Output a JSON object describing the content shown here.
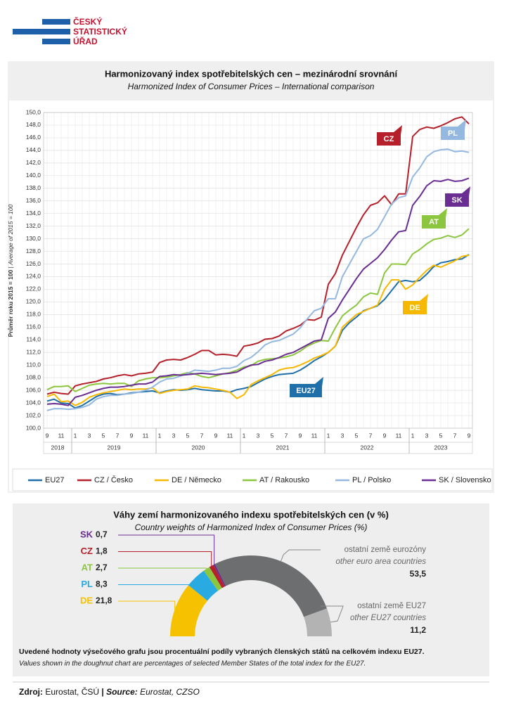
{
  "header": {
    "logo": [
      "ČESKÝ",
      "STATISTICKÝ",
      "ÚŘAD"
    ]
  },
  "chart_data": [
    {
      "type": "line",
      "title": "Harmonizovaný index spotřebitelských cen – mezinárodní srovnání",
      "subtitle": "Harmonized Index of Consumer Prices – International comparison",
      "ylabel": "Průměr roku 2015 = 100",
      "ylabel_separator": "|",
      "ylabel_en": "Average of 2015 = 100",
      "categories": [
        "9",
        null,
        "11",
        null,
        "1",
        null,
        "3",
        null,
        "5",
        null,
        "7",
        null,
        "9",
        null,
        "11",
        null,
        "1",
        null,
        "3",
        null,
        "5",
        null,
        "7",
        null,
        "9",
        null,
        "11",
        null,
        "1",
        null,
        "3",
        null,
        "5",
        null,
        "7",
        null,
        "9",
        null,
        "11",
        null,
        "1",
        null,
        "3",
        null,
        "5",
        null,
        "7",
        null,
        "9",
        null,
        "11",
        null,
        "1",
        null,
        "3",
        null,
        "5",
        null,
        "7",
        null,
        "9"
      ],
      "year_groups": [
        {
          "label": "2018",
          "months": 4
        },
        {
          "label": "2019",
          "months": 12
        },
        {
          "label": "2020",
          "months": 12
        },
        {
          "label": "2021",
          "months": 12
        },
        {
          "label": "2022",
          "months": 12
        },
        {
          "label": "2023",
          "months": 9
        }
      ],
      "series": [
        {
          "name": "EU27",
          "tag": "EU27",
          "color": "#1f6fa8",
          "values": [
            104.3,
            104.6,
            104.0,
            103.9,
            103.2,
            103.6,
            104.3,
            105.0,
            105.4,
            105.5,
            105.3,
            105.4,
            105.6,
            105.7,
            105.8,
            105.9,
            105.6,
            105.9,
            106.1,
            106.0,
            106.1,
            106.3,
            106.1,
            106.0,
            105.9,
            105.9,
            105.7,
            106.1,
            106.3,
            106.6,
            107.2,
            107.8,
            108.2,
            108.5,
            108.6,
            108.7,
            109.2,
            109.9,
            110.7,
            111.3,
            112.0,
            113.0,
            115.5,
            116.7,
            117.6,
            118.6,
            119.0,
            119.4,
            120.4,
            121.8,
            123.2,
            123.4,
            123.2,
            123.4,
            124.4,
            125.6,
            126.2,
            126.4,
            126.7,
            126.8,
            127.5
          ]
        },
        {
          "name": "CZ / Česko",
          "tag": "CZ",
          "color": "#b5202a",
          "values": [
            105.4,
            105.7,
            105.5,
            105.4,
            106.7,
            107.0,
            107.2,
            107.4,
            107.8,
            108.0,
            108.3,
            108.5,
            108.3,
            108.6,
            108.7,
            108.9,
            110.4,
            110.8,
            110.9,
            110.8,
            111.2,
            111.7,
            112.3,
            112.3,
            111.6,
            111.7,
            111.6,
            111.4,
            113.0,
            113.2,
            113.5,
            114.1,
            114.2,
            114.6,
            115.4,
            115.8,
            116.3,
            117.2,
            117.1,
            117.6,
            122.8,
            124.5,
            127.4,
            129.6,
            131.8,
            133.8,
            135.3,
            135.7,
            136.8,
            135.4,
            137.1,
            137.1,
            146.2,
            147.3,
            147.7,
            147.5,
            147.9,
            148.4,
            149.0,
            149.3,
            148.2
          ]
        },
        {
          "name": "DE / Německo",
          "tag": "DE",
          "color": "#f6b800",
          "values": [
            105.0,
            105.4,
            104.2,
            104.3,
            103.6,
            104.1,
            104.9,
            105.3,
            105.6,
            105.8,
            106.0,
            106.2,
            106.1,
            106.2,
            106.2,
            106.4,
            105.5,
            105.8,
            106.0,
            106.1,
            106.2,
            106.7,
            106.5,
            106.4,
            106.2,
            106.0,
            105.7,
            104.7,
            105.3,
            106.9,
            107.5,
            108.0,
            108.5,
            109.2,
            109.5,
            109.6,
            110.0,
            110.5,
            111.1,
            111.5,
            112.0,
            113.0,
            116.0,
            117.0,
            118.0,
            118.5,
            119.0,
            119.5,
            122.0,
            123.5,
            123.5,
            122.0,
            122.7,
            123.9,
            125.0,
            125.8,
            125.5,
            126.0,
            126.5,
            127.2,
            127.4
          ]
        },
        {
          "name": "AT / Rakousko",
          "tag": "AT",
          "color": "#8cc63e",
          "values": [
            106.1,
            106.6,
            106.6,
            106.7,
            105.8,
            106.3,
            106.8,
            107.0,
            107.1,
            107.0,
            107.1,
            107.1,
            106.6,
            107.5,
            107.8,
            108.0,
            108.0,
            108.1,
            108.3,
            108.5,
            108.8,
            108.6,
            108.2,
            108.0,
            108.3,
            108.6,
            108.8,
            109.2,
            109.7,
            109.9,
            110.6,
            110.9,
            111.0,
            111.1,
            111.3,
            111.6,
            112.2,
            113.0,
            113.5,
            113.9,
            113.8,
            115.9,
            117.8,
            118.7,
            119.5,
            120.8,
            121.4,
            121.2,
            124.6,
            126.0,
            126.0,
            125.9,
            127.6,
            128.3,
            129.2,
            129.9,
            130.1,
            130.5,
            130.2,
            130.6,
            131.6
          ]
        },
        {
          "name": "PL / Polsko",
          "tag": "PL",
          "color": "#94b8e0",
          "values": [
            102.8,
            103.1,
            103.1,
            103.0,
            103.1,
            103.3,
            103.7,
            104.6,
            105.0,
            105.2,
            105.2,
            105.4,
            105.5,
            105.7,
            106.0,
            106.5,
            107.3,
            107.8,
            107.9,
            108.3,
            108.7,
            109.2,
            109.1,
            109.0,
            109.2,
            109.5,
            109.5,
            109.8,
            110.7,
            111.2,
            112.1,
            113.2,
            113.7,
            113.9,
            114.4,
            114.9,
            115.9,
            117.3,
            118.6,
            119.0,
            120.5,
            120.5,
            124.0,
            126.0,
            128.0,
            130.0,
            130.5,
            131.5,
            133.5,
            135.5,
            136.5,
            136.8,
            139.8,
            141.2,
            143.0,
            143.8,
            144.1,
            144.2,
            143.8,
            143.9,
            143.7
          ]
        },
        {
          "name": "SK / Slovensko",
          "tag": "SK",
          "color": "#6a2d91",
          "values": [
            103.8,
            103.9,
            103.8,
            103.6,
            104.9,
            105.2,
            105.6,
            106.0,
            106.3,
            106.5,
            106.5,
            106.6,
            106.8,
            107.0,
            107.0,
            107.3,
            108.2,
            108.3,
            108.5,
            108.4,
            108.5,
            108.6,
            108.7,
            108.6,
            108.5,
            108.6,
            108.7,
            108.9,
            109.5,
            110.0,
            110.1,
            110.6,
            110.8,
            111.2,
            111.7,
            112.0,
            112.6,
            113.2,
            113.8,
            114.0,
            117.4,
            118.4,
            120.3,
            122.0,
            123.7,
            125.2,
            126.1,
            127.0,
            128.3,
            129.8,
            131.1,
            131.3,
            135.3,
            136.7,
            138.4,
            139.2,
            139.1,
            139.4,
            139.1,
            139.2,
            139.6
          ]
        }
      ],
      "ylim": [
        100,
        150
      ],
      "yticks": [
        {
          "value": 100,
          "label": "100,0"
        },
        {
          "value": 102,
          "label": "102,0"
        },
        {
          "value": 104,
          "label": "104,0"
        },
        {
          "value": 106,
          "label": "106,0"
        },
        {
          "value": 108,
          "label": "108,0"
        },
        {
          "value": 110,
          "label": "110,0"
        },
        {
          "value": 112,
          "label": "112,0"
        },
        {
          "value": 114,
          "label": "114,0"
        },
        {
          "value": 116,
          "label": "116,0"
        },
        {
          "value": 118,
          "label": "118,0"
        },
        {
          "value": 120,
          "label": "120,0"
        },
        {
          "value": 122,
          "label": "122,0"
        },
        {
          "value": 124,
          "label": "124,0"
        },
        {
          "value": 126,
          "label": "126,0"
        },
        {
          "value": 128,
          "label": "128,0"
        },
        {
          "value": 130,
          "label": "130,0"
        },
        {
          "value": 132,
          "label": "132,0"
        },
        {
          "value": 134,
          "label": "134,0"
        },
        {
          "value": 136,
          "label": "136,0"
        },
        {
          "value": 138,
          "label": "138,0"
        },
        {
          "value": 140,
          "label": "140,0"
        },
        {
          "value": 142,
          "label": "142,0"
        },
        {
          "value": 144,
          "label": "144,0"
        },
        {
          "value": 146,
          "label": "146,0"
        },
        {
          "value": 148,
          "label": "148,0"
        },
        {
          "value": 150,
          "label": "150,0"
        }
      ],
      "grid": true,
      "legend": "bottom"
    },
    {
      "type": "pie",
      "donut": true,
      "half": true,
      "title": "Váhy zemí harmonizovaného indexu spotřebitelských cen (v %)",
      "subtitle": "Country weights of Harmonized Index of Consumer Prices (%)",
      "categories": [
        "DE",
        "PL",
        "AT",
        "CZ",
        "SK",
        "ostatní země eurozóny",
        "ostatní země EU27"
      ],
      "subtitles": [
        null,
        null,
        null,
        null,
        null,
        "other euro area countries",
        "other EU27 countries"
      ],
      "values": [
        21.8,
        8.3,
        2.7,
        1.8,
        0.7,
        53.5,
        11.2
      ],
      "value_labels": [
        "21,8",
        "8,3",
        "2,7",
        "1,8",
        "0,7",
        "53,5",
        "11,2"
      ],
      "colors": [
        "#f6c200",
        "#29abe2",
        "#8cc63e",
        "#b5202a",
        "#6a2d91",
        "#6d6e70",
        "#b3b3b3"
      ]
    }
  ],
  "note": {
    "cs": "Uvedené hodnoty výsečového grafu jsou procentuální podíly vybraných členských států na celkovém indexu EU27.",
    "en": "Values shown in the doughnut chart are percentages of selected Member States of the total index for the EU27."
  },
  "source": {
    "label": "Zdroj:",
    "text": "Eurostat, ČSÚ",
    "separator": "|",
    "label_en": "Source:",
    "text_en": "Eurostat, CZSO"
  }
}
